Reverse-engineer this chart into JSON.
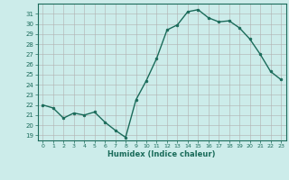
{
  "x": [
    0,
    1,
    2,
    3,
    4,
    5,
    6,
    7,
    8,
    9,
    10,
    11,
    12,
    13,
    14,
    15,
    16,
    17,
    18,
    19,
    20,
    21,
    22,
    23
  ],
  "y": [
    22.0,
    21.7,
    20.7,
    21.2,
    21.0,
    21.3,
    20.3,
    19.5,
    18.8,
    22.5,
    24.4,
    26.6,
    29.4,
    29.9,
    31.2,
    31.4,
    30.6,
    30.2,
    30.3,
    29.6,
    28.5,
    27.0,
    25.3,
    24.5
  ],
  "line_color": "#1a6b5a",
  "marker_color": "#1a6b5a",
  "bg_color": "#ccecea",
  "grid_color": "#b0b0b0",
  "xlabel": "Humidex (Indice chaleur)",
  "xlim": [
    -0.5,
    23.5
  ],
  "ylim": [
    18.5,
    32.0
  ],
  "yticks": [
    19,
    20,
    21,
    22,
    23,
    24,
    25,
    26,
    27,
    28,
    29,
    30,
    31
  ],
  "xticks": [
    0,
    1,
    2,
    3,
    4,
    5,
    6,
    7,
    8,
    9,
    10,
    11,
    12,
    13,
    14,
    15,
    16,
    17,
    18,
    19,
    20,
    21,
    22,
    23
  ]
}
